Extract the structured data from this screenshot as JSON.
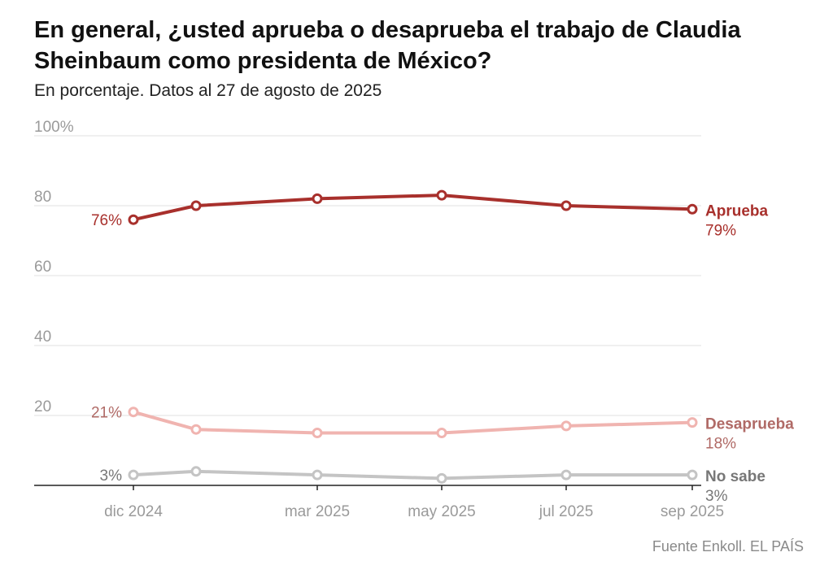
{
  "header": {
    "title": "En general, ¿usted aprueba o desaprueba el trabajo de Claudia Sheinbaum como presidenta de México?",
    "subtitle": "En porcentaje. Datos al 27 de agosto de 2025"
  },
  "footer": {
    "source": "Fuente Enkoll. EL PAÍS"
  },
  "chart_data": {
    "type": "line",
    "title": "En general, ¿usted aprueba o desaprueba el trabajo de Claudia Sheinbaum como presidenta de México?",
    "subtitle": "En porcentaje. Datos al 27 de agosto de 2025",
    "xlabel": "",
    "ylabel": "",
    "ylim": [
      0,
      100
    ],
    "y_ticks": [
      {
        "value": 20,
        "label": "20"
      },
      {
        "value": 40,
        "label": "40"
      },
      {
        "value": 60,
        "label": "60"
      },
      {
        "value": 80,
        "label": "80"
      },
      {
        "value": 100,
        "label": "100%"
      }
    ],
    "x": [
      "2024-12",
      "2025-01",
      "2025-03",
      "2025-05",
      "2025-07",
      "2025-09"
    ],
    "x_ticks": [
      {
        "x": "2024-12",
        "label": "dic 2024"
      },
      {
        "x": "2025-03",
        "label": "mar 2025"
      },
      {
        "x": "2025-05",
        "label": "may 2025"
      },
      {
        "x": "2025-07",
        "label": "jul 2025"
      },
      {
        "x": "2025-09",
        "label": "sep 2025"
      }
    ],
    "grid": true,
    "legend": "end-labels",
    "series": [
      {
        "name": "Aprueba",
        "color": "#a8302c",
        "values": [
          76,
          80,
          82,
          83,
          80,
          79
        ],
        "start_label": "76%",
        "end_label": "79%"
      },
      {
        "name": "Desaprueba",
        "color": "#f0b4b0",
        "label_color": "#b06a66",
        "values": [
          21,
          16,
          15,
          15,
          17,
          18
        ],
        "start_label": "21%",
        "end_label": "18%"
      },
      {
        "name": "No sabe",
        "color": "#c4c4c4",
        "label_color": "#777777",
        "values": [
          3,
          4,
          3,
          2,
          3,
          3
        ],
        "start_label": "3%",
        "end_label": "3%"
      }
    ],
    "colors": {
      "grid": "#e2e2e2",
      "axis": "#222222",
      "tick_text": "#9a9a9a",
      "gray_text": "#777777"
    }
  }
}
